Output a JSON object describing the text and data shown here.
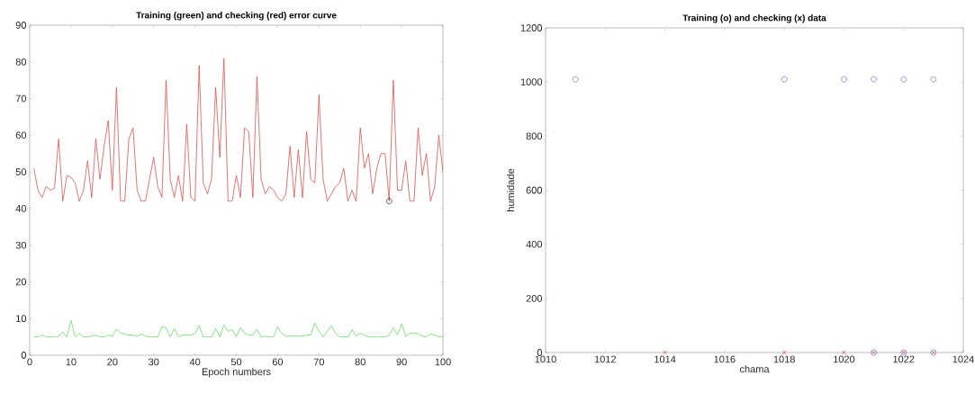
{
  "chart_data": [
    {
      "type": "line",
      "title": "Training (green) and checking (red) error curve",
      "xlabel": "Epoch numbers",
      "x": [
        1,
        2,
        3,
        4,
        5,
        6,
        7,
        8,
        9,
        10,
        11,
        12,
        13,
        14,
        15,
        16,
        17,
        18,
        19,
        20,
        21,
        22,
        23,
        24,
        25,
        26,
        27,
        28,
        29,
        30,
        31,
        32,
        33,
        34,
        35,
        36,
        37,
        38,
        39,
        40,
        41,
        42,
        43,
        44,
        45,
        46,
        47,
        48,
        49,
        50,
        51,
        52,
        53,
        54,
        55,
        56,
        57,
        58,
        59,
        60,
        61,
        62,
        63,
        64,
        65,
        66,
        67,
        68,
        69,
        70,
        71,
        72,
        73,
        74,
        75,
        76,
        77,
        78,
        79,
        80,
        81,
        82,
        83,
        84,
        85,
        86,
        87,
        88,
        89,
        90,
        91,
        92,
        93,
        94,
        95,
        96,
        97,
        98,
        99,
        100
      ],
      "series": [
        {
          "color": "#d9534f",
          "values": [
            51,
            45,
            43,
            46,
            45,
            45.5,
            59,
            42,
            49,
            48.5,
            47,
            42,
            45,
            53,
            43,
            59,
            48,
            57,
            64,
            45,
            73,
            42,
            42,
            59,
            62,
            45,
            42,
            42,
            48,
            54,
            46,
            43,
            75,
            48,
            43,
            49,
            42,
            63,
            43,
            42,
            79,
            47,
            44,
            48,
            73,
            54,
            81,
            42,
            42,
            49,
            43,
            62,
            61,
            43,
            76,
            48,
            44,
            46,
            45,
            43,
            42,
            44,
            57,
            43,
            56,
            43,
            61,
            48,
            47,
            71,
            48,
            42,
            44,
            46,
            47,
            51,
            42,
            45,
            42,
            62,
            51,
            55,
            44,
            51,
            55,
            55,
            42,
            75,
            45,
            45,
            53,
            42,
            42,
            62,
            49,
            55,
            42,
            46,
            60,
            50
          ]
        },
        {
          "color": "#66dd66",
          "values": [
            5,
            5,
            5.5,
            5,
            5,
            5,
            5.2,
            6.3,
            5,
            9.5,
            5,
            6,
            5,
            5,
            5.2,
            5.5,
            5,
            5,
            5.5,
            5.2,
            7.2,
            6,
            5.8,
            5.5,
            5.5,
            5.2,
            5.8,
            5.2,
            5,
            5,
            5,
            7.8,
            7.5,
            5,
            7.3,
            5,
            5.5,
            5.5,
            5.5,
            6,
            8,
            5,
            5,
            5,
            7.3,
            5,
            8.3,
            6.5,
            7,
            5,
            7.5,
            6,
            5.5,
            5.5,
            7,
            5,
            5.2,
            5,
            5,
            7.8,
            6,
            5.2,
            5.2,
            5.2,
            5.2,
            5.2,
            5.5,
            5.5,
            8.8,
            6.5,
            5,
            6.5,
            8,
            6,
            5,
            5,
            5,
            7,
            5.2,
            6,
            5.5,
            5,
            5,
            5,
            5,
            5,
            5.5,
            7.5,
            5.5,
            8.5,
            5.2,
            6,
            6,
            5.8,
            5.2,
            5,
            5.8,
            5.5,
            5,
            5.2
          ]
        },
        {
          "type": "scatter",
          "marker": "circle",
          "color": "#000000",
          "x": [
            87
          ],
          "values": [
            42
          ]
        }
      ],
      "xlim": [
        0,
        100
      ],
      "xticks": [
        0,
        10,
        20,
        30,
        40,
        50,
        60,
        70,
        80,
        90,
        100
      ],
      "ylim": [
        0,
        90
      ],
      "yticks": [
        0,
        10,
        20,
        30,
        40,
        50,
        60,
        70,
        80,
        90
      ],
      "marker": "none"
    },
    {
      "type": "scatter",
      "title": "Training (o) and checking (x) data",
      "xlabel": "chama",
      "ylabel": "humidade",
      "series": [
        {
          "marker": "circle",
          "color": "#5555cc",
          "x": [
            1011,
            1018,
            1020,
            1021,
            1022,
            1023,
            1021,
            1022,
            1023
          ],
          "values": [
            1010,
            1010,
            1010,
            1010,
            1010,
            1010,
            0,
            0,
            0
          ]
        },
        {
          "marker": "cross",
          "color": "#cc3333",
          "x": [
            1014,
            1018,
            1020,
            1021,
            1022,
            1023
          ],
          "values": [
            0,
            0,
            0,
            0,
            0,
            0
          ]
        }
      ],
      "xlim": [
        1010,
        1024
      ],
      "xticks": [
        1010,
        1012,
        1014,
        1016,
        1018,
        1020,
        1022,
        1024
      ],
      "ylim": [
        0,
        1200
      ],
      "yticks": [
        0,
        200,
        400,
        600,
        800,
        1000,
        1200
      ]
    }
  ]
}
